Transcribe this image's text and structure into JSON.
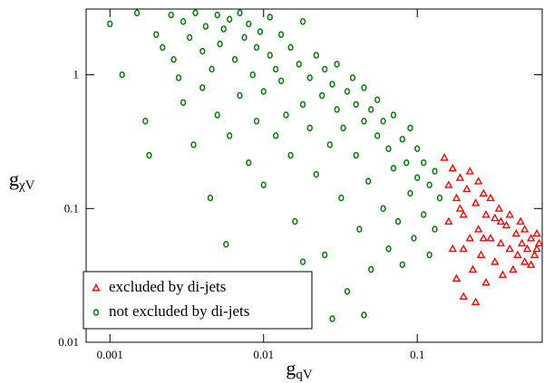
{
  "chart_data": {
    "type": "scatter",
    "xlabel_main": "g",
    "xlabel_sub": "qV",
    "ylabel_main": "g",
    "ylabel_sub": "χV",
    "xscale": "log",
    "yscale": "log",
    "xlim": [
      0.0007,
      0.65
    ],
    "ylim": [
      0.01,
      3.1
    ],
    "xticks": [
      0.001,
      0.01,
      0.1
    ],
    "yticks": [
      0.01,
      0.1,
      1
    ],
    "legend": "lower left",
    "series": [
      {
        "name": "excluded by di-jets",
        "color": "#ff0000",
        "marker": "triangle",
        "x": [
          0.15,
          0.16,
          0.16,
          0.17,
          0.17,
          0.18,
          0.18,
          0.19,
          0.2,
          0.2,
          0.21,
          0.22,
          0.22,
          0.23,
          0.24,
          0.25,
          0.25,
          0.26,
          0.27,
          0.28,
          0.28,
          0.3,
          0.3,
          0.32,
          0.32,
          0.34,
          0.35,
          0.36,
          0.38,
          0.4,
          0.4,
          0.42,
          0.44,
          0.45,
          0.47,
          0.48,
          0.5,
          0.5,
          0.52,
          0.55,
          0.55,
          0.58,
          0.6,
          0.6,
          0.62,
          0.2,
          0.24,
          0.35,
          0.27,
          0.19
        ],
        "y": [
          0.24,
          0.15,
          0.08,
          0.2,
          0.05,
          0.12,
          0.03,
          0.17,
          0.09,
          0.022,
          0.14,
          0.06,
          0.19,
          0.035,
          0.11,
          0.07,
          0.16,
          0.045,
          0.13,
          0.028,
          0.09,
          0.06,
          0.12,
          0.04,
          0.085,
          0.1,
          0.055,
          0.032,
          0.075,
          0.05,
          0.09,
          0.035,
          0.065,
          0.045,
          0.08,
          0.055,
          0.04,
          0.07,
          0.05,
          0.06,
          0.038,
          0.045,
          0.065,
          0.05,
          0.055,
          0.05,
          0.02,
          0.08,
          0.06,
          0.1
        ]
      },
      {
        "name": "not excluded by di-jets",
        "color": "#008000",
        "marker": "circle",
        "x": [
          0.001,
          0.0012,
          0.0015,
          0.0017,
          0.0018,
          0.002,
          0.0022,
          0.0025,
          0.0026,
          0.0028,
          0.003,
          0.003,
          0.0033,
          0.0035,
          0.0036,
          0.004,
          0.004,
          0.0042,
          0.0045,
          0.0046,
          0.005,
          0.005,
          0.0052,
          0.0055,
          0.0057,
          0.006,
          0.006,
          0.0065,
          0.007,
          0.007,
          0.0075,
          0.008,
          0.008,
          0.0085,
          0.009,
          0.009,
          0.0095,
          0.01,
          0.01,
          0.011,
          0.011,
          0.012,
          0.012,
          0.013,
          0.013,
          0.014,
          0.015,
          0.015,
          0.016,
          0.017,
          0.018,
          0.018,
          0.02,
          0.02,
          0.022,
          0.022,
          0.024,
          0.025,
          0.025,
          0.027,
          0.028,
          0.03,
          0.03,
          0.032,
          0.033,
          0.035,
          0.035,
          0.038,
          0.04,
          0.04,
          0.042,
          0.045,
          0.045,
          0.048,
          0.05,
          0.05,
          0.055,
          0.055,
          0.06,
          0.06,
          0.065,
          0.065,
          0.07,
          0.07,
          0.075,
          0.08,
          0.08,
          0.085,
          0.09,
          0.09,
          0.095,
          0.1,
          0.1,
          0.11,
          0.11,
          0.12,
          0.12,
          0.13,
          0.13,
          0.14,
          0.045,
          0.028,
          0.018
        ],
        "y": [
          2.4,
          1.0,
          2.9,
          0.45,
          0.25,
          2.0,
          1.6,
          2.8,
          1.3,
          0.95,
          2.5,
          0.62,
          1.9,
          0.3,
          2.9,
          1.5,
          0.8,
          2.3,
          0.12,
          1.1,
          2.8,
          0.5,
          1.7,
          2.2,
          0.054,
          0.35,
          2.6,
          1.3,
          2.9,
          0.7,
          1.9,
          0.22,
          2.4,
          1.0,
          0.45,
          1.6,
          2.1,
          0.75,
          0.15,
          1.4,
          2.7,
          0.35,
          1.1,
          0.9,
          2.0,
          0.5,
          1.6,
          0.25,
          0.08,
          1.2,
          0.6,
          2.5,
          0.95,
          0.4,
          1.4,
          0.18,
          0.7,
          1.1,
          0.045,
          0.3,
          0.85,
          0.55,
          1.2,
          0.12,
          0.4,
          0.75,
          0.024,
          0.95,
          0.25,
          0.6,
          0.07,
          0.45,
          0.8,
          0.16,
          0.55,
          0.035,
          0.35,
          0.65,
          0.1,
          0.45,
          0.28,
          0.05,
          0.5,
          0.2,
          0.08,
          0.33,
          0.038,
          0.22,
          0.4,
          0.13,
          0.06,
          0.28,
          0.17,
          0.09,
          0.22,
          0.15,
          0.045,
          0.19,
          0.07,
          0.12,
          0.016,
          0.015,
          0.04
        ]
      }
    ]
  }
}
